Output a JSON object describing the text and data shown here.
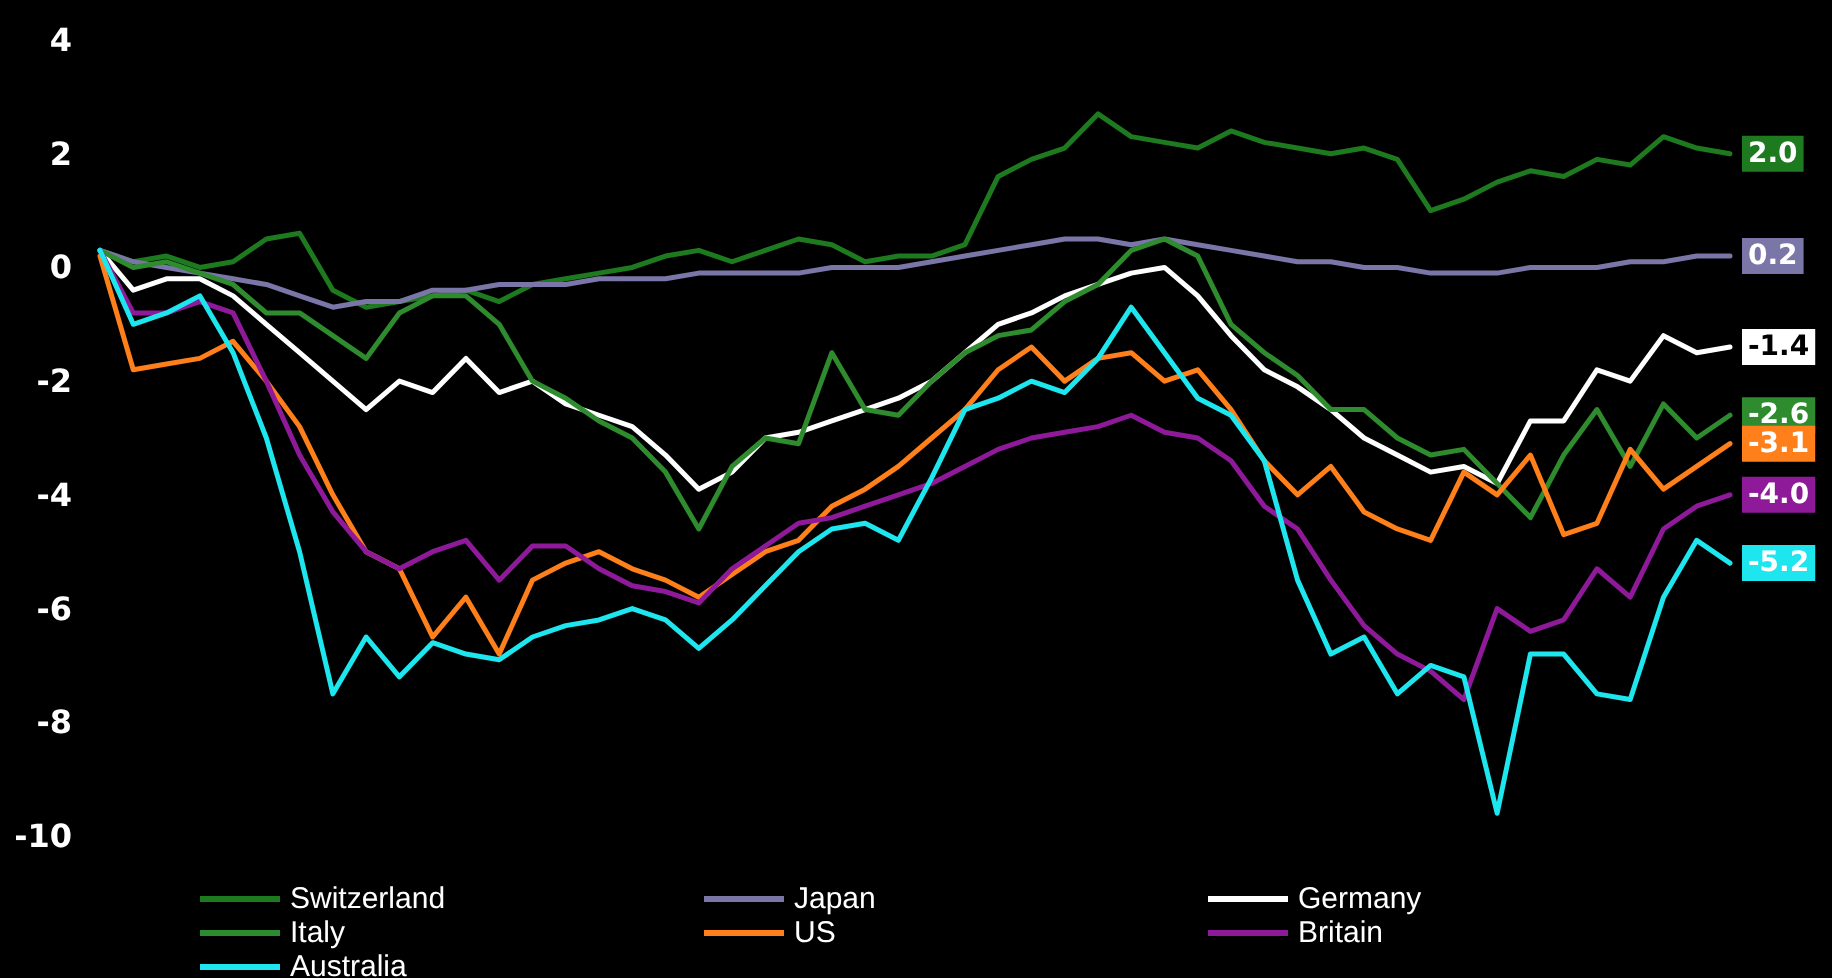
{
  "chart_data": {
    "type": "line",
    "categories": [
      null,
      null,
      null,
      null,
      null,
      null,
      null,
      null,
      null,
      null,
      null,
      null,
      null,
      null,
      null,
      null,
      null,
      null,
      null,
      null,
      null,
      null,
      null,
      null,
      null,
      null,
      null,
      null,
      null,
      null,
      null,
      null,
      null,
      null,
      null,
      null,
      null,
      null,
      null,
      null,
      null,
      null,
      null,
      null,
      null,
      null,
      null,
      null,
      null,
      null
    ],
    "series": [
      {
        "name": "Switzerland",
        "color": "#1e7a1e",
        "values": [
          0.3,
          0.1,
          0.2,
          0,
          0.1,
          0.5,
          0.6,
          -0.4,
          -0.7,
          -0.6,
          -0.5,
          -0.4,
          -0.6,
          -0.3,
          -0.2,
          -0.1,
          0,
          0.2,
          0.3,
          0.1,
          0.3,
          0.5,
          0.4,
          0.1,
          0.2,
          0.2,
          0.4,
          1.6,
          1.9,
          2.1,
          2.7,
          2.3,
          2.2,
          2.1,
          2.4,
          2.2,
          2.1,
          2.0,
          2.1,
          1.9,
          1.0,
          1.2,
          1.5,
          1.7,
          1.6,
          1.9,
          1.8,
          2.3,
          2.1,
          2.0
        ],
        "value_labels": [
          null,
          null,
          null,
          null,
          null,
          null,
          null,
          null,
          null,
          null,
          null,
          null,
          null,
          null,
          null,
          null,
          null,
          null,
          null,
          null,
          null,
          null,
          null,
          null,
          null,
          null,
          null,
          null,
          null,
          null,
          null,
          null,
          null,
          null,
          null,
          null,
          null,
          null,
          null,
          null,
          null,
          null,
          null,
          null,
          null,
          null,
          null,
          null,
          null,
          "2.0"
        ]
      },
      {
        "name": "Japan",
        "color": "#7b76a8",
        "values": [
          0.3,
          0.1,
          0,
          -0.1,
          -0.2,
          -0.3,
          -0.5,
          -0.7,
          -0.6,
          -0.6,
          -0.4,
          -0.4,
          -0.3,
          -0.3,
          -0.3,
          -0.2,
          -0.2,
          -0.2,
          -0.1,
          -0.1,
          -0.1,
          -0.1,
          0,
          0,
          0,
          0.1,
          0.2,
          0.3,
          0.4,
          0.5,
          0.5,
          0.4,
          0.5,
          0.4,
          0.3,
          0.2,
          0.1,
          0.1,
          0,
          0,
          -0.1,
          -0.1,
          -0.1,
          0,
          0,
          0,
          0.1,
          0.1,
          0.2,
          0.2
        ],
        "value_labels": [
          null,
          null,
          null,
          null,
          null,
          null,
          null,
          null,
          null,
          null,
          null,
          null,
          null,
          null,
          null,
          null,
          null,
          null,
          null,
          null,
          null,
          null,
          null,
          null,
          null,
          null,
          null,
          null,
          null,
          null,
          null,
          null,
          null,
          null,
          null,
          null,
          null,
          null,
          null,
          null,
          null,
          null,
          null,
          null,
          null,
          null,
          null,
          null,
          null,
          "0.2"
        ]
      },
      {
        "name": "Germany",
        "color": "#ffffff",
        "values": [
          0.3,
          -0.4,
          -0.2,
          -0.2,
          -0.5,
          -1.0,
          -1.5,
          -2.0,
          -2.5,
          -2.0,
          -2.2,
          -1.6,
          -2.2,
          -2.0,
          -2.4,
          -2.6,
          -2.8,
          -3.3,
          -3.9,
          -3.6,
          -3.0,
          -2.9,
          -2.7,
          -2.5,
          -2.3,
          -2.0,
          -1.5,
          -1.0,
          -0.8,
          -0.5,
          -0.3,
          -0.1,
          0,
          -0.5,
          -1.2,
          -1.8,
          -2.1,
          -2.5,
          -3.0,
          -3.3,
          -3.6,
          -3.5,
          -3.8,
          -2.7,
          -2.7,
          -1.8,
          -2.0,
          -1.2,
          -1.5,
          -1.4
        ],
        "value_labels": [
          null,
          null,
          null,
          null,
          null,
          null,
          null,
          null,
          null,
          null,
          null,
          null,
          null,
          null,
          null,
          null,
          null,
          null,
          null,
          null,
          null,
          null,
          null,
          null,
          null,
          null,
          null,
          null,
          null,
          null,
          null,
          null,
          null,
          null,
          null,
          null,
          null,
          null,
          null,
          null,
          null,
          null,
          null,
          null,
          null,
          null,
          null,
          null,
          null,
          "-1.4"
        ]
      },
      {
        "name": "Italy",
        "color": "#2e8b2e",
        "values": [
          0.3,
          0,
          0.1,
          -0.1,
          -0.3,
          -0.8,
          -0.8,
          -1.2,
          -1.6,
          -0.8,
          -0.5,
          -0.5,
          -1.0,
          -2.0,
          -2.3,
          -2.7,
          -3.0,
          -3.6,
          -4.6,
          -3.5,
          -3.0,
          -3.1,
          -1.5,
          -2.5,
          -2.6,
          -2.0,
          -1.5,
          -1.2,
          -1.1,
          -0.6,
          -0.3,
          0.3,
          0.5,
          0.2,
          -1.0,
          -1.5,
          -1.9,
          -2.5,
          -2.5,
          -3.0,
          -3.3,
          -3.2,
          -3.8,
          -4.4,
          -3.3,
          -2.5,
          -3.5,
          -2.4,
          -3.0,
          -2.6
        ],
        "value_labels": [
          null,
          null,
          null,
          null,
          null,
          null,
          null,
          null,
          null,
          null,
          null,
          null,
          null,
          null,
          null,
          null,
          null,
          null,
          null,
          null,
          null,
          null,
          null,
          null,
          null,
          null,
          null,
          null,
          null,
          null,
          null,
          null,
          null,
          null,
          null,
          null,
          null,
          null,
          null,
          null,
          null,
          null,
          null,
          null,
          null,
          null,
          null,
          null,
          null,
          "-2.6"
        ]
      },
      {
        "name": "US",
        "color": "#ff7f1a",
        "values": [
          0.2,
          -1.8,
          -1.7,
          -1.6,
          -1.3,
          -2.0,
          -2.8,
          -4.0,
          -5.0,
          -5.3,
          -6.5,
          -5.8,
          -6.8,
          -5.5,
          -5.2,
          -5.0,
          -5.3,
          -5.5,
          -5.8,
          -5.4,
          -5.0,
          -4.8,
          -4.2,
          -3.9,
          -3.5,
          -3.0,
          -2.5,
          -1.8,
          -1.4,
          -2.0,
          -1.6,
          -1.5,
          -2.0,
          -1.8,
          -2.5,
          -3.4,
          -4.0,
          -3.5,
          -4.3,
          -4.6,
          -4.8,
          -3.6,
          -4.0,
          -3.3,
          -4.7,
          -4.5,
          -3.2,
          -3.9,
          -3.5,
          -3.1
        ],
        "value_labels": [
          null,
          null,
          null,
          null,
          null,
          null,
          null,
          null,
          null,
          null,
          null,
          null,
          null,
          null,
          null,
          null,
          null,
          null,
          null,
          null,
          null,
          null,
          null,
          null,
          null,
          null,
          null,
          null,
          null,
          null,
          null,
          null,
          null,
          null,
          null,
          null,
          null,
          null,
          null,
          null,
          null,
          null,
          null,
          null,
          null,
          null,
          null,
          null,
          null,
          "-3.1"
        ]
      },
      {
        "name": "Britain",
        "color": "#8e1a9a",
        "values": [
          0.3,
          -0.8,
          -0.8,
          -0.6,
          -0.8,
          -2.0,
          -3.3,
          -4.3,
          -5.0,
          -5.3,
          -5.0,
          -4.8,
          -5.5,
          -4.9,
          -4.9,
          -5.3,
          -5.6,
          -5.7,
          -5.9,
          -5.3,
          -4.9,
          -4.5,
          -4.4,
          -4.2,
          -4.0,
          -3.8,
          -3.5,
          -3.2,
          -3.0,
          -2.9,
          -2.8,
          -2.6,
          -2.9,
          -3.0,
          -3.4,
          -4.2,
          -4.6,
          -5.5,
          -6.3,
          -6.8,
          -7.1,
          -7.6,
          -6.0,
          -6.4,
          -6.2,
          -5.3,
          -5.8,
          -4.6,
          -4.2,
          -4.0
        ],
        "value_labels": [
          null,
          null,
          null,
          null,
          null,
          null,
          null,
          null,
          null,
          null,
          null,
          null,
          null,
          null,
          null,
          null,
          null,
          null,
          null,
          null,
          null,
          null,
          null,
          null,
          null,
          null,
          null,
          null,
          null,
          null,
          null,
          null,
          null,
          null,
          null,
          null,
          null,
          null,
          null,
          null,
          null,
          null,
          null,
          null,
          null,
          null,
          null,
          null,
          null,
          "-4.0"
        ]
      },
      {
        "name": "Australia",
        "color": "#1ee6ef",
        "values": [
          0.3,
          -1.0,
          -0.8,
          -0.5,
          -1.5,
          -3.0,
          -5.0,
          -7.5,
          -6.5,
          -7.2,
          -6.6,
          -6.8,
          -6.9,
          -6.5,
          -6.3,
          -6.2,
          -6.0,
          -6.2,
          -6.7,
          -6.2,
          -5.6,
          -5.0,
          -4.6,
          -4.5,
          -4.8,
          -3.7,
          -2.5,
          -2.3,
          -2.0,
          -2.2,
          -1.6,
          -0.7,
          -1.5,
          -2.3,
          -2.6,
          -3.4,
          -5.5,
          -6.8,
          -6.5,
          -7.5,
          -7.0,
          -7.2,
          -9.6,
          -6.8,
          -6.8,
          -7.5,
          -7.6,
          -5.8,
          -4.8,
          -5.2
        ],
        "value_labels": [
          null,
          null,
          null,
          null,
          null,
          null,
          null,
          null,
          null,
          null,
          null,
          null,
          null,
          null,
          null,
          null,
          null,
          null,
          null,
          null,
          null,
          null,
          null,
          null,
          null,
          null,
          null,
          null,
          null,
          null,
          null,
          null,
          null,
          null,
          null,
          null,
          null,
          null,
          null,
          null,
          null,
          null,
          null,
          null,
          null,
          null,
          null,
          null,
          null,
          "-5.2"
        ]
      }
    ],
    "ylim": [
      -10,
      4
    ],
    "yticks": [
      -10,
      -8,
      -6,
      -4,
      -2,
      0,
      2,
      4
    ],
    "tick_labels": "y",
    "grid": false,
    "legend": "bottom",
    "marker": "none",
    "line_style": "solid"
  }
}
